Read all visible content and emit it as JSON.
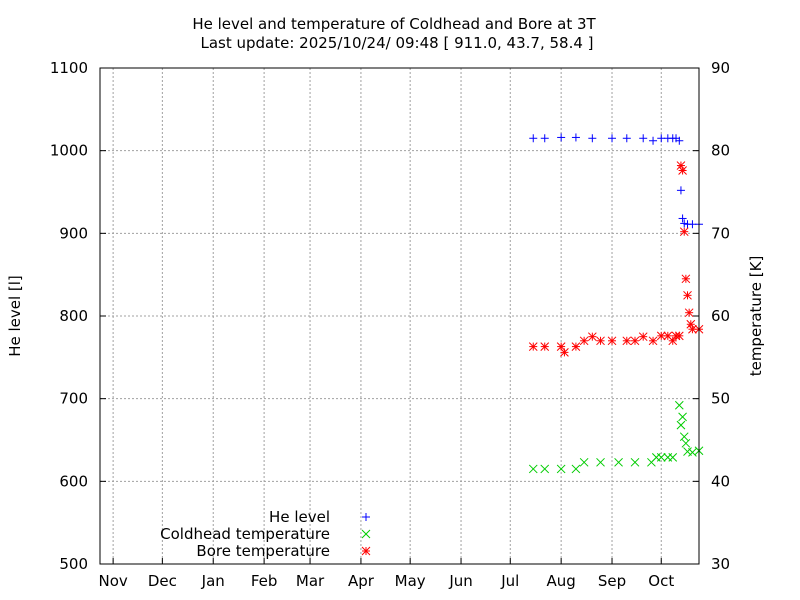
{
  "chart_data": {
    "type": "scatter",
    "title": "He level and temperature of Coldhead and Bore at 3T",
    "subtitle": "Last update: 2025/10/24/ 09:48 [ 911.0, 43.7, 58.4 ]",
    "ylabel_left": "He level [l]",
    "ylabel_right": "temperature [K]",
    "y_left_range": [
      500,
      1100
    ],
    "y_right_range": [
      30,
      90
    ],
    "y_left_ticks": [
      "500",
      "600",
      "700",
      "800",
      "900",
      "1000",
      "1100"
    ],
    "y_right_ticks": [
      "30",
      "40",
      "50",
      "60",
      "70",
      "80",
      "90"
    ],
    "x_range": [
      "2024-10-24",
      "2025-10-24"
    ],
    "x_ticks": [
      {
        "label": "Nov",
        "date": "2024-11-01"
      },
      {
        "label": "Dec",
        "date": "2024-12-01"
      },
      {
        "label": "Jan",
        "date": "2025-01-01"
      },
      {
        "label": "Feb",
        "date": "2025-02-01"
      },
      {
        "label": "Mar",
        "date": "2025-03-01"
      },
      {
        "label": "Apr",
        "date": "2025-04-01"
      },
      {
        "label": "May",
        "date": "2025-05-01"
      },
      {
        "label": "Jun",
        "date": "2025-06-01"
      },
      {
        "label": "Jul",
        "date": "2025-07-01"
      },
      {
        "label": "Aug",
        "date": "2025-08-01"
      },
      {
        "label": "Sep",
        "date": "2025-09-01"
      },
      {
        "label": "Oct",
        "date": "2025-10-01"
      }
    ],
    "grid": true,
    "legend_position": "bottom-left",
    "series": [
      {
        "name": "He level",
        "axis": "left",
        "marker": "+",
        "color": "#0000ff",
        "x": [
          "2025-07-15",
          "2025-07-22",
          "2025-08-01",
          "2025-08-10",
          "2025-08-20",
          "2025-09-01",
          "2025-09-10",
          "2025-09-20",
          "2025-09-26",
          "2025-10-01",
          "2025-10-05",
          "2025-10-08",
          "2025-10-10",
          "2025-10-12",
          "2025-10-13",
          "2025-10-14",
          "2025-10-15",
          "2025-10-17",
          "2025-10-20",
          "2025-10-24"
        ],
        "y": [
          1015,
          1015,
          1016,
          1016,
          1015,
          1015,
          1015,
          1015,
          1012,
          1015,
          1015,
          1015,
          1015,
          1012,
          952,
          918,
          912,
          911,
          911,
          911
        ]
      },
      {
        "name": "Coldhead temperature",
        "axis": "right",
        "marker": "x",
        "color": "#00cc00",
        "x": [
          "2025-07-15",
          "2025-07-22",
          "2025-08-01",
          "2025-08-10",
          "2025-08-15",
          "2025-08-25",
          "2025-09-05",
          "2025-09-15",
          "2025-09-25",
          "2025-09-28",
          "2025-10-01",
          "2025-10-05",
          "2025-10-08",
          "2025-10-12",
          "2025-10-13",
          "2025-10-14",
          "2025-10-15",
          "2025-10-16",
          "2025-10-17",
          "2025-10-20",
          "2025-10-24"
        ],
        "y": [
          41.5,
          41.5,
          41.5,
          41.5,
          42.3,
          42.3,
          42.3,
          42.3,
          42.3,
          42.9,
          42.9,
          42.9,
          42.9,
          49.2,
          46.8,
          47.8,
          45.4,
          44.6,
          43.6,
          43.5,
          43.7
        ]
      },
      {
        "name": "Bore temperature",
        "axis": "right",
        "marker": "*",
        "color": "#ff0000",
        "x": [
          "2025-07-15",
          "2025-07-22",
          "2025-08-01",
          "2025-08-03",
          "2025-08-10",
          "2025-08-15",
          "2025-08-20",
          "2025-08-25",
          "2025-09-01",
          "2025-09-10",
          "2025-09-15",
          "2025-09-20",
          "2025-09-26",
          "2025-10-01",
          "2025-10-05",
          "2025-10-08",
          "2025-10-10",
          "2025-10-12",
          "2025-10-13",
          "2025-10-14",
          "2025-10-15",
          "2025-10-16",
          "2025-10-17",
          "2025-10-18",
          "2025-10-19",
          "2025-10-20",
          "2025-10-24"
        ],
        "y": [
          56.3,
          56.3,
          56.3,
          55.6,
          56.3,
          57.0,
          57.5,
          57.0,
          57.0,
          57.0,
          57.0,
          57.5,
          57.0,
          57.6,
          57.6,
          57.0,
          57.6,
          57.6,
          78.2,
          77.6,
          70.2,
          64.5,
          62.5,
          60.4,
          59.0,
          58.4,
          58.4
        ]
      }
    ]
  }
}
